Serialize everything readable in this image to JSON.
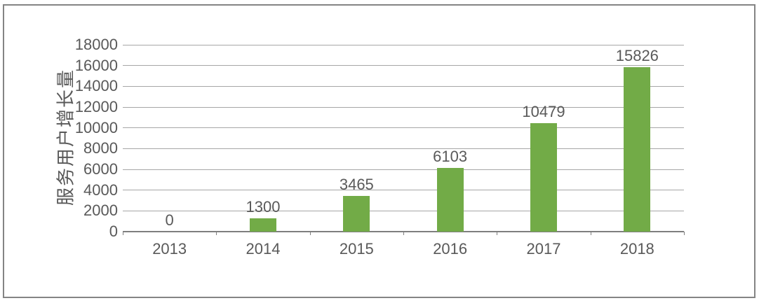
{
  "chart_data": {
    "type": "bar",
    "title": "",
    "categories": [
      "2013",
      "2014",
      "2015",
      "2016",
      "2017",
      "2018"
    ],
    "values": [
      0,
      1300,
      3465,
      6103,
      10479,
      15826
    ],
    "data_labels": [
      "0",
      "1300",
      "3465",
      "6103",
      "10479",
      "15826"
    ],
    "xlabel": "",
    "ylabel": "服务用户增长量",
    "ylim": [
      0,
      18000
    ],
    "ytick_step": 2000,
    "yticks": [
      0,
      2000,
      4000,
      6000,
      8000,
      10000,
      12000,
      14000,
      16000,
      18000
    ],
    "grid": true,
    "legend_position": "none",
    "colors": {
      "bar": "#72AB47",
      "text": "#595959",
      "gridline": "#A6A6A6",
      "axis": "#7F7F7F",
      "frame": "#848484",
      "background": "#FFFFFF"
    }
  }
}
